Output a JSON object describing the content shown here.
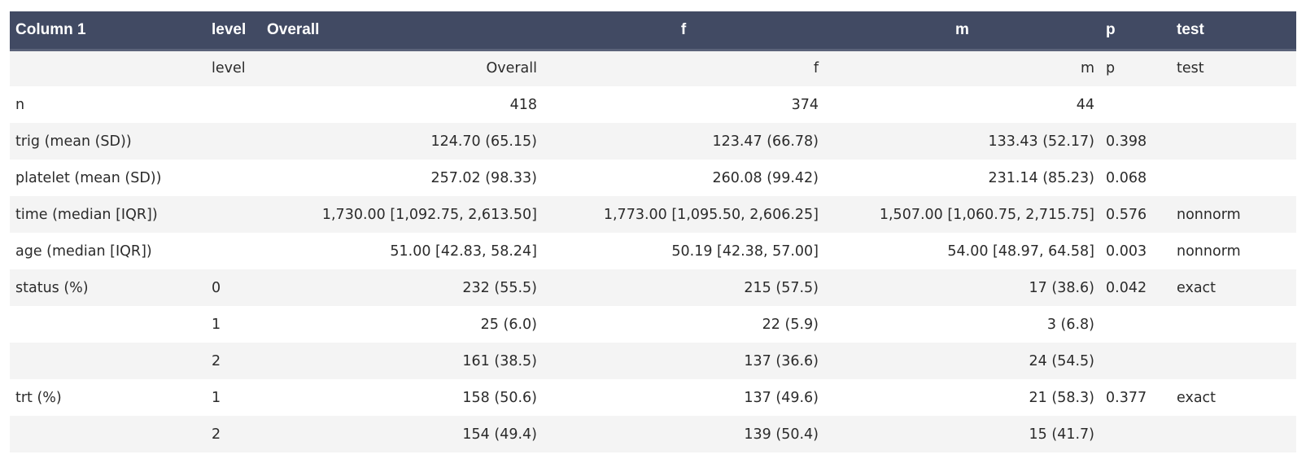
{
  "table": {
    "headers": [
      "Column 1",
      "level",
      "Overall",
      "f",
      "m",
      "p",
      "test"
    ],
    "rows": [
      [
        "",
        "level",
        "Overall",
        "f",
        "m",
        "p",
        "test"
      ],
      [
        "n",
        "",
        "418",
        "374",
        "44",
        "",
        ""
      ],
      [
        "trig (mean (SD))",
        "",
        "124.70 (65.15)",
        "123.47 (66.78)",
        "133.43 (52.17)",
        "0.398",
        ""
      ],
      [
        "platelet (mean (SD))",
        "",
        "257.02 (98.33)",
        "260.08 (99.42)",
        "231.14 (85.23)",
        "0.068",
        ""
      ],
      [
        "time (median [IQR])",
        "",
        "1,730.00 [1,092.75, 2,613.50]",
        "1,773.00 [1,095.50, 2,606.25]",
        "1,507.00 [1,060.75, 2,715.75]",
        "0.576",
        "nonnorm"
      ],
      [
        "age (median [IQR])",
        "",
        "51.00 [42.83, 58.24]",
        "50.19 [42.38, 57.00]",
        "54.00 [48.97, 64.58]",
        "0.003",
        "nonnorm"
      ],
      [
        "status (%)",
        "0",
        "232 (55.5)",
        "215 (57.5)",
        "17 (38.6)",
        "0.042",
        "exact"
      ],
      [
        "",
        "1",
        "25 (6.0)",
        "22 (5.9)",
        "3 (6.8)",
        "",
        ""
      ],
      [
        "",
        "2",
        "161 (38.5)",
        "137 (36.6)",
        "24 (54.5)",
        "",
        ""
      ],
      [
        "trt (%)",
        "1",
        "158 (50.6)",
        "137 (49.6)",
        "21 (58.3)",
        "0.377",
        "exact"
      ],
      [
        "",
        "2",
        "154 (49.4)",
        "139 (50.4)",
        "15 (41.7)",
        "",
        ""
      ]
    ]
  },
  "colors": {
    "header_bg": "#414a63",
    "header_text": "#ffffff",
    "row_stripe": "#f4f4f4",
    "row_plain": "#ffffff",
    "body_text": "#2b2b2b"
  }
}
